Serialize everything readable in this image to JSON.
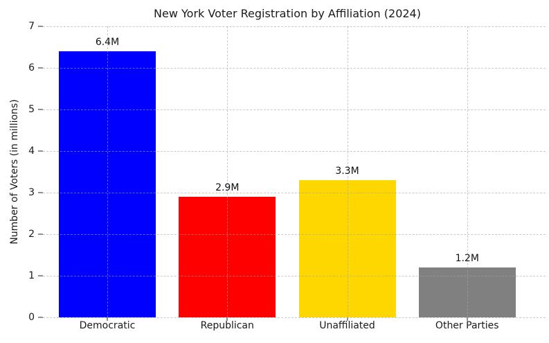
{
  "figure": {
    "background": "#ffffff",
    "text_color": "#1a1a1a",
    "grid_color": "#c8c8c8"
  },
  "chart_data": {
    "type": "bar",
    "title": "New York Voter Registration by Affiliation (2024)",
    "xlabel": "",
    "ylabel": "Number of Voters (in millions)",
    "categories": [
      "Democratic",
      "Republican",
      "Unaffiliated",
      "Other Parties"
    ],
    "values": [
      6.4,
      2.9,
      3.3,
      1.2
    ],
    "value_labels": [
      "6.4M",
      "2.9M",
      "3.3M",
      "1.2M"
    ],
    "bar_colors": [
      "#0000ff",
      "#ff0000",
      "#ffd700",
      "#808080"
    ],
    "ylim": [
      0,
      7
    ],
    "yticks": [
      0,
      1,
      2,
      3,
      4,
      5,
      6,
      7
    ],
    "grid": {
      "style": "dashed",
      "axes": "both",
      "drawn_over_bars": true
    },
    "legend": "none"
  }
}
